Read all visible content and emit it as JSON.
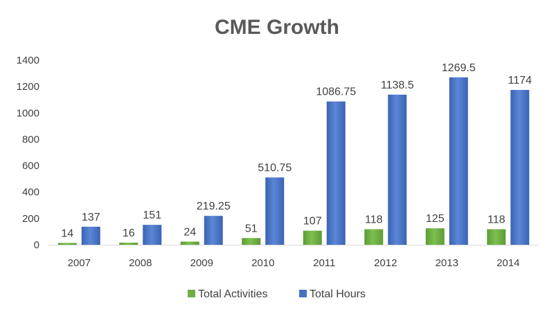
{
  "chart_data": {
    "type": "bar",
    "title": "CME Growth",
    "categories": [
      "2007",
      "2008",
      "2009",
      "2010",
      "2011",
      "2012",
      "2013",
      "2014"
    ],
    "series": [
      {
        "name": "Total Activities",
        "color": "#70ad47",
        "values": [
          14,
          16,
          24,
          51,
          107,
          118,
          125,
          118
        ],
        "labels": [
          "14",
          "16",
          "24",
          "51",
          "107",
          "118",
          "125",
          "118"
        ]
      },
      {
        "name": "Total Hours",
        "color": "#4472c4",
        "values": [
          137,
          151,
          219.25,
          510.75,
          1086.75,
          1138.5,
          1269.5,
          1174
        ],
        "labels": [
          "137",
          "151",
          "219.25",
          "510.75",
          "1086.75",
          "1138.5",
          "1269.5",
          "1174"
        ]
      }
    ],
    "ylim": [
      0,
      1400
    ],
    "yticks": [
      "0",
      "200",
      "400",
      "600",
      "800",
      "1000",
      "1200",
      "1400"
    ],
    "grid": false,
    "legend_position": "bottom"
  }
}
